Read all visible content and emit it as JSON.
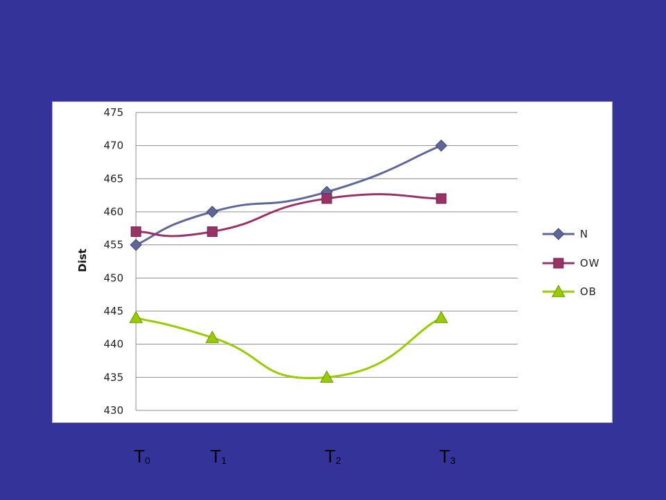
{
  "chart_data": {
    "type": "line",
    "ylabel": "Dist",
    "ylim": [
      430,
      475
    ],
    "yticks": [
      430,
      435,
      440,
      445,
      450,
      455,
      460,
      465,
      470,
      475
    ],
    "categories": [
      "T0",
      "T1",
      "T2",
      "T3"
    ],
    "category_labels": [
      {
        "base": "T",
        "sub": "0"
      },
      {
        "base": "T",
        "sub": "1"
      },
      {
        "base": "T",
        "sub": "2"
      },
      {
        "base": "T",
        "sub": "3"
      }
    ],
    "x": [
      0,
      1,
      2.5,
      4
    ],
    "grid": true,
    "legend_position": "right",
    "series": [
      {
        "name": "N",
        "values": [
          455,
          460,
          463,
          470
        ],
        "color": "#5e6797",
        "marker": "diamond"
      },
      {
        "name": "OW",
        "values": [
          457,
          457,
          462,
          462
        ],
        "color": "#993366",
        "marker": "square"
      },
      {
        "name": "OB",
        "values": [
          444,
          441,
          435,
          444
        ],
        "color": "#99cc00",
        "marker": "triangle"
      }
    ]
  },
  "colors": {
    "background": "#333399",
    "panel": "#ffffff",
    "grid": "#8c8c8c"
  }
}
